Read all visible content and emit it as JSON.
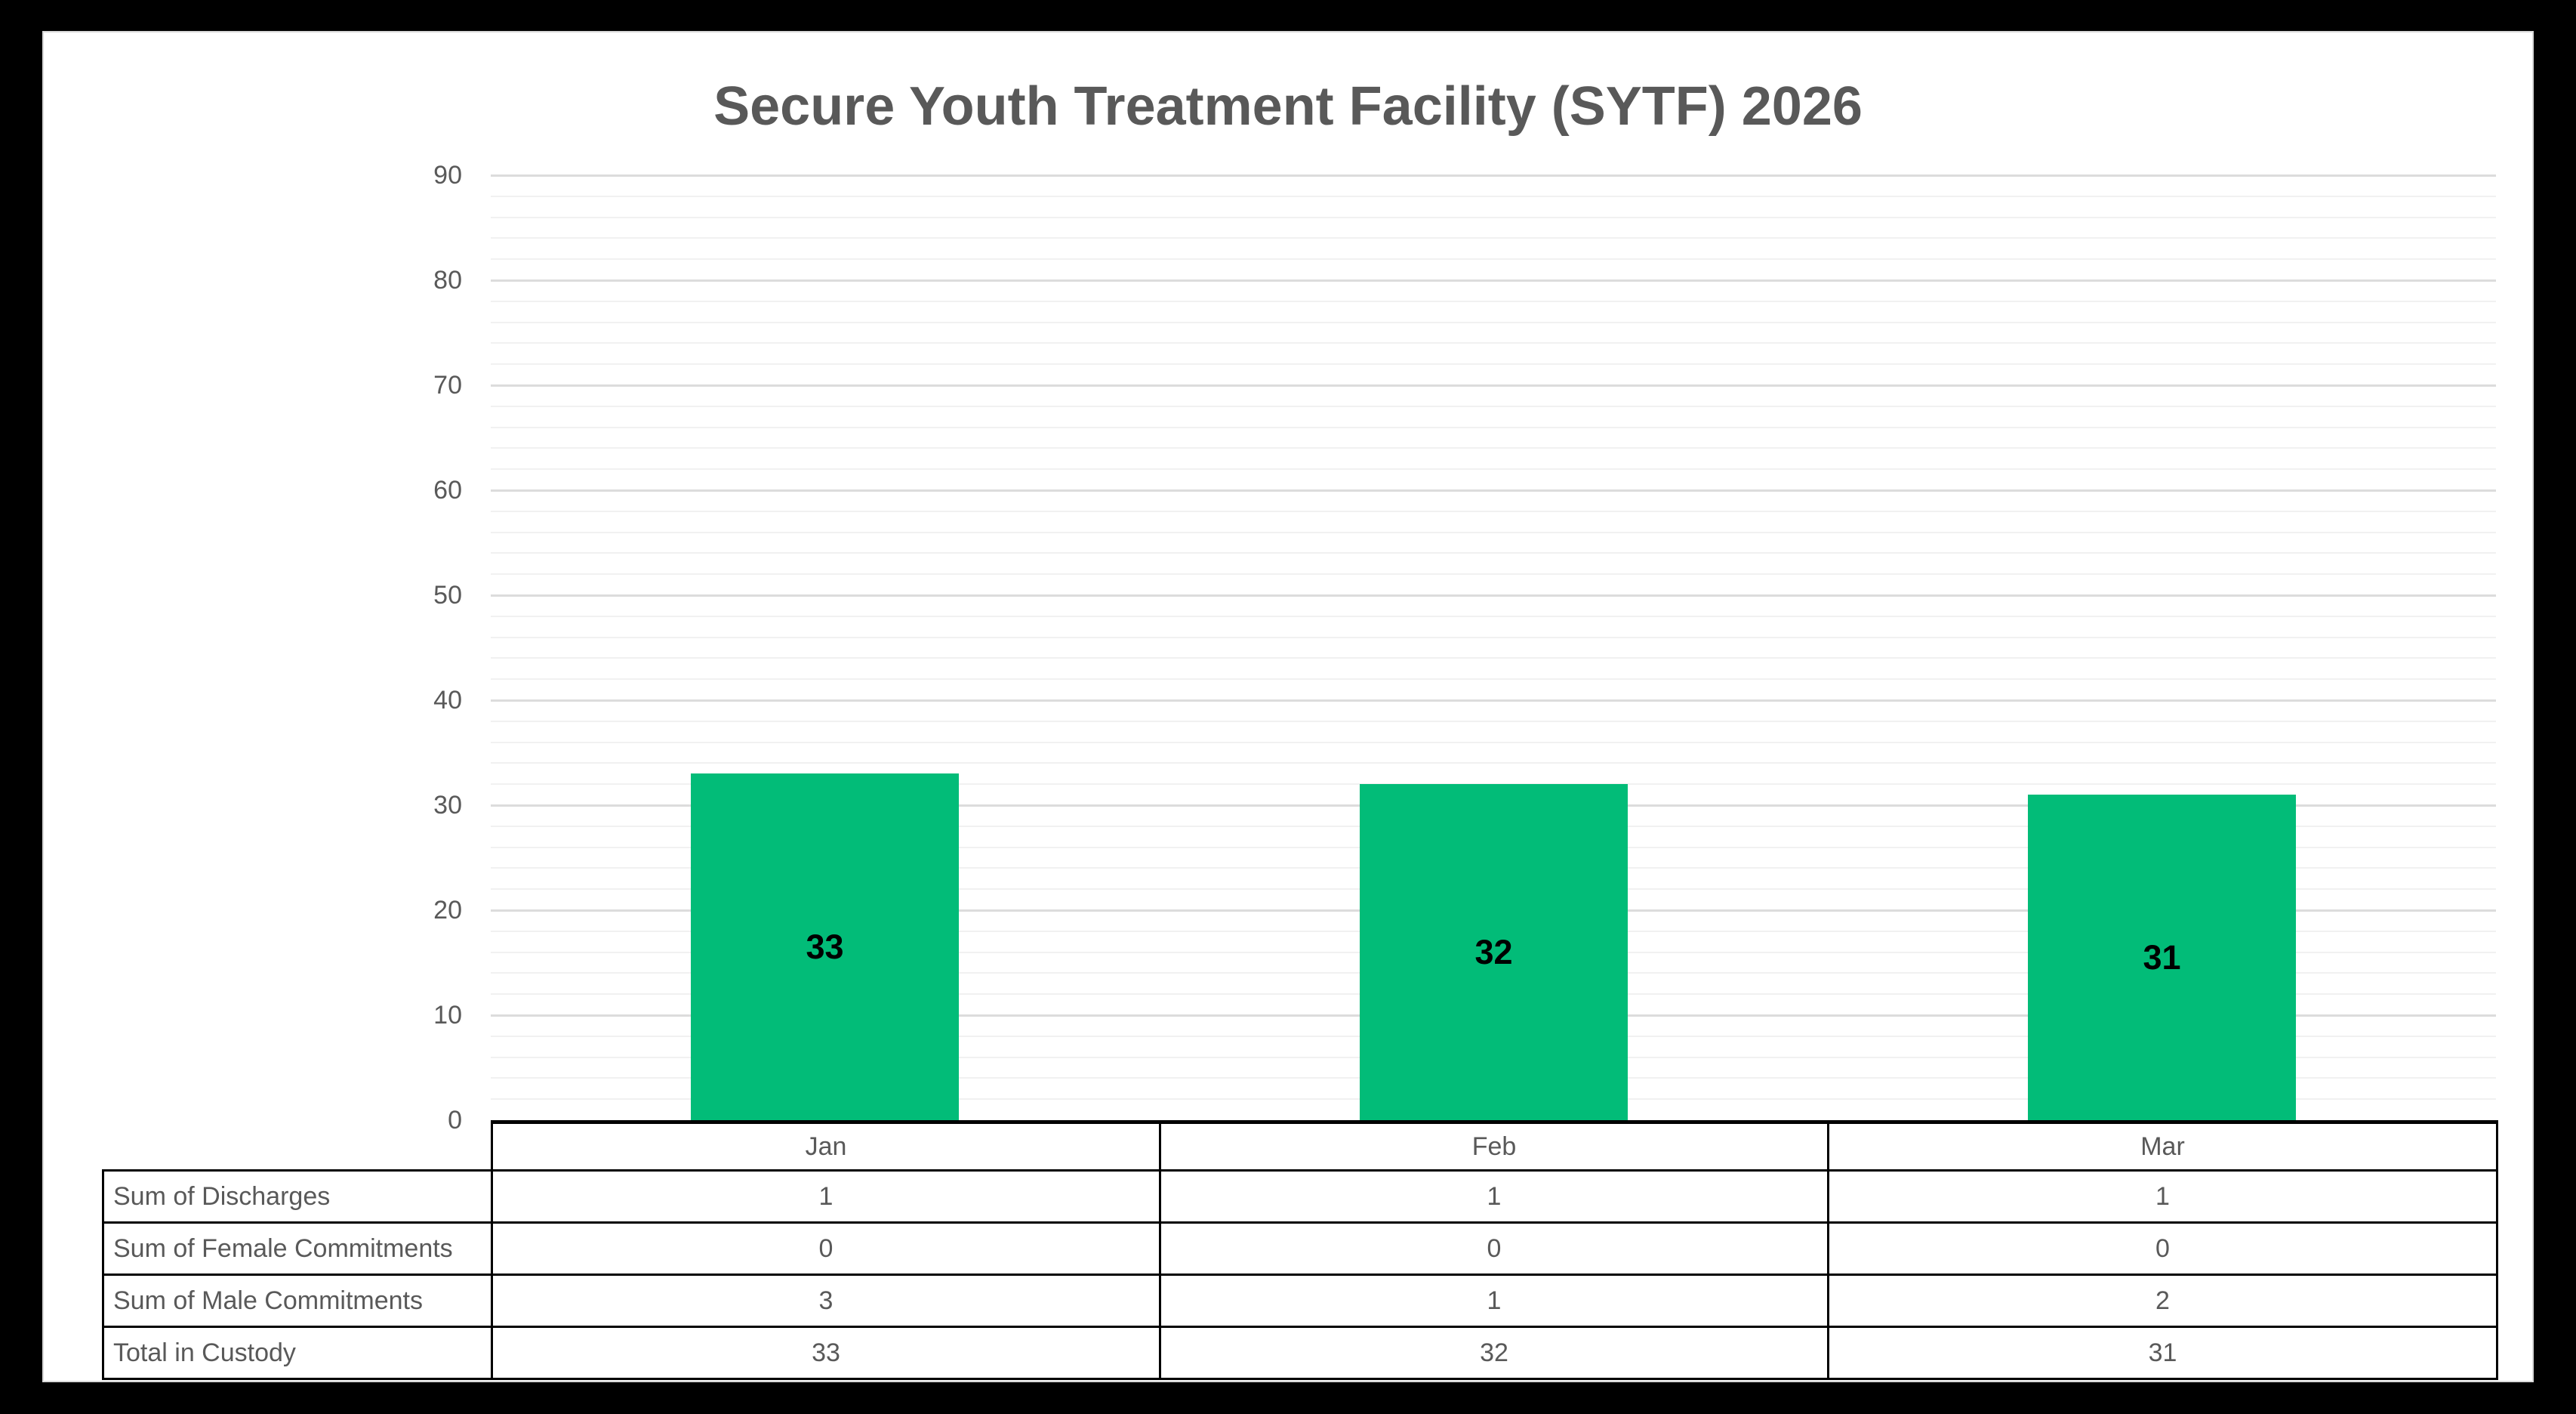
{
  "title": "Secure Youth Treatment Facility (SYTF) 2026",
  "chart_data": {
    "type": "bar",
    "title": "Secure Youth Treatment Facility (SYTF) 2026",
    "categories": [
      "Jan",
      "Feb",
      "Mar"
    ],
    "series_plotted": "Total in Custody",
    "values": [
      33,
      32,
      31
    ],
    "bar_labels": [
      "33",
      "32",
      "31"
    ],
    "xlabel": "",
    "ylabel": "",
    "ylim": [
      0,
      90
    ],
    "yticks": [
      0,
      10,
      20,
      30,
      40,
      50,
      60,
      70,
      80,
      90
    ],
    "minor_gridline_step": 2,
    "grid": "horizontal major and minor gridlines",
    "legend": "none",
    "bar_color": "#02BC78",
    "data_label_position": "inside center"
  },
  "data_table": {
    "column_headers": [
      "Jan",
      "Feb",
      "Mar"
    ],
    "rows": [
      {
        "label": "Sum of Discharges",
        "values": [
          "1",
          "1",
          "1"
        ]
      },
      {
        "label": "Sum of Female Commitments",
        "values": [
          "0",
          "0",
          "0"
        ]
      },
      {
        "label": "Sum of Male Commitments",
        "values": [
          "3",
          "1",
          "2"
        ]
      },
      {
        "label": "Total in Custody",
        "values": [
          "33",
          "32",
          "31"
        ]
      }
    ]
  },
  "colors": {
    "bar_fill": "#02BC78",
    "bar_value_label": "#000000",
    "axis_text": "#595959",
    "title_text": "#595959",
    "table_text": "#595959",
    "table_border": "#000000",
    "gridline_major": "#DCDCDC",
    "gridline_minor": "#F1F1F1",
    "frame": "#000000",
    "canvas_background": "#FFFFFF"
  }
}
